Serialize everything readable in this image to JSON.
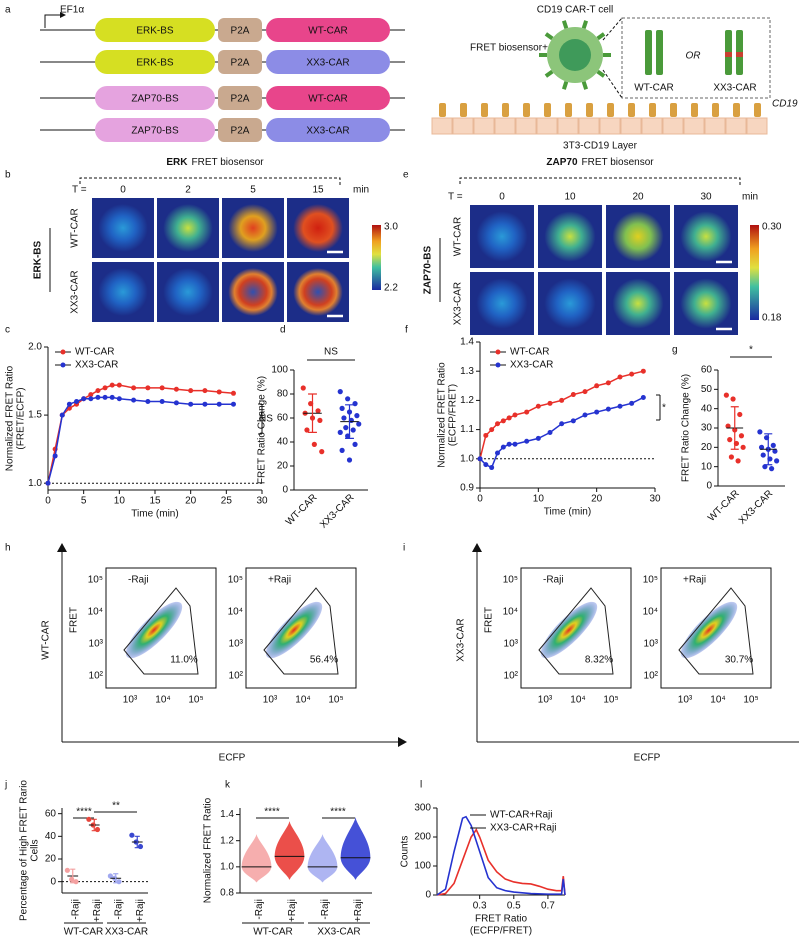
{
  "panel_labels": [
    "a",
    "b",
    "c",
    "d",
    "e",
    "f",
    "g",
    "h",
    "i",
    "j",
    "k",
    "l"
  ],
  "constructs": {
    "promoter": "EF1α",
    "rows": [
      [
        "ERK-BS",
        "P2A",
        "WT-CAR"
      ],
      [
        "ERK-BS",
        "P2A",
        "XX3-CAR"
      ],
      [
        "ZAP70-BS",
        "P2A",
        "WT-CAR"
      ],
      [
        "ZAP70-BS",
        "P2A",
        "XX3-CAR"
      ]
    ]
  },
  "diagram": {
    "cell": "CD19 CAR-T cell",
    "biosensor": "FRET biosensor+",
    "or": "OR",
    "left": "WT-CAR",
    "right": "XX3-CAR",
    "ligand": "CD19",
    "layer": "3T3-CD19 Layer"
  },
  "imaging": [
    {
      "title_bold": "ERK",
      "title": "FRET biosensor",
      "t_label": "T =",
      "times": [
        0,
        2,
        5,
        15
      ],
      "unit": "min",
      "rows": [
        "WT-CAR",
        "XX3-CAR"
      ],
      "group": "ERK-BS",
      "colorbar": [
        "3.0",
        "2.2"
      ]
    },
    {
      "title_bold": "ZAP70",
      "title": "FRET biosensor",
      "t_label": "T =",
      "times": [
        0,
        10,
        20,
        30
      ],
      "unit": "min",
      "rows": [
        "WT-CAR",
        "XX3-CAR"
      ],
      "group": "ZAP70-BS",
      "colorbar": [
        "0.30",
        "0.18"
      ]
    }
  ],
  "flow": [
    {
      "row": "WT-CAR",
      "ylabel": "FRET",
      "xlabel": "ECFP",
      "plots": [
        {
          "title": "-Raji",
          "gate": "11.0%"
        },
        {
          "title": "+Raji",
          "gate": "56.4%"
        }
      ],
      "yticks": [
        "10⁵",
        "10⁴",
        "10³",
        "10²"
      ],
      "xticks": [
        "10³",
        "10⁴",
        "10⁵"
      ]
    },
    {
      "row": "XX3-CAR",
      "ylabel": "FRET",
      "xlabel": "ECFP",
      "plots": [
        {
          "title": "-Raji",
          "gate": "8.32%"
        },
        {
          "title": "+Raji",
          "gate": "30.7%"
        }
      ],
      "yticks": [
        "10⁵",
        "10⁴",
        "10³",
        "10²"
      ],
      "xticks": [
        "10³",
        "10⁴",
        "10⁵"
      ]
    }
  ],
  "chart_data": [
    {
      "type": "line",
      "markers": true,
      "xlabel": "Time (min)",
      "ylabel": [
        "Normalized FRET Ratio",
        "(FRET/ECFP)"
      ],
      "xlim": [
        0,
        30
      ],
      "xticks": [
        0,
        5,
        10,
        15,
        20,
        25,
        30
      ],
      "ylim": [
        0.95,
        2.0
      ],
      "yticks": [
        {
          "value": 1.0,
          "label": "1.0"
        },
        {
          "value": 1.5,
          "label": "1.5"
        },
        {
          "value": 2.0,
          "label": "2.0"
        }
      ],
      "refline": 1.0,
      "annotations": [
        "NS"
      ],
      "series": [
        {
          "name": "WT-CAR",
          "color": "#e8302a",
          "x": [
            0,
            1,
            2,
            3,
            4,
            5,
            6,
            7,
            8,
            9,
            10,
            12,
            14,
            16,
            18,
            20,
            22,
            24,
            26
          ],
          "values": [
            1.0,
            1.25,
            1.5,
            1.55,
            1.58,
            1.62,
            1.65,
            1.68,
            1.7,
            1.72,
            1.72,
            1.7,
            1.7,
            1.7,
            1.69,
            1.68,
            1.68,
            1.67,
            1.66
          ]
        },
        {
          "name": "XX3-CAR",
          "color": "#2533d0",
          "x": [
            0,
            1,
            2,
            3,
            4,
            5,
            6,
            7,
            8,
            9,
            10,
            12,
            14,
            16,
            18,
            20,
            22,
            24,
            26
          ],
          "values": [
            1.0,
            1.2,
            1.5,
            1.58,
            1.6,
            1.62,
            1.62,
            1.63,
            1.63,
            1.63,
            1.62,
            1.61,
            1.6,
            1.6,
            1.59,
            1.58,
            1.58,
            1.58,
            1.58
          ]
        }
      ]
    },
    {
      "type": "dot",
      "ylabel": [
        "FRET Ratio Change (%)"
      ],
      "ylim": [
        0,
        100
      ],
      "yticks": [
        0,
        20,
        40,
        60,
        80,
        100
      ],
      "categories": [
        "WT-CAR",
        "XX3-CAR"
      ],
      "colors": [
        "#e8302a",
        "#2533d0"
      ],
      "annotations": [
        "NS"
      ],
      "points": [
        [
          85,
          72,
          66,
          64,
          60,
          58,
          50,
          38,
          32
        ],
        [
          82,
          76,
          72,
          68,
          65,
          62,
          60,
          58,
          55,
          52,
          50,
          48,
          45,
          38,
          33,
          25
        ]
      ],
      "means": [
        64,
        57
      ],
      "sds": [
        16,
        14
      ]
    },
    {
      "type": "line",
      "markers": true,
      "xlabel": "Time (min)",
      "ylabel": [
        "Normalized FRET Ratio",
        "(ECFP/FRET)"
      ],
      "xlim": [
        0,
        30
      ],
      "xticks": [
        0,
        10,
        20,
        30
      ],
      "ylim": [
        0.9,
        1.4
      ],
      "yticks": [
        {
          "value": 0.9,
          "label": "0.9"
        },
        {
          "value": 1.0,
          "label": "1.0"
        },
        {
          "value": 1.1,
          "label": "1.1"
        },
        {
          "value": 1.2,
          "label": "1.2"
        },
        {
          "value": 1.3,
          "label": "1.3"
        },
        {
          "value": 1.4,
          "label": "1.4"
        }
      ],
      "refline": 1.0,
      "annotations": [
        "*"
      ],
      "series": [
        {
          "name": "WT-CAR",
          "color": "#e8302a",
          "x": [
            0,
            1,
            2,
            3,
            4,
            5,
            6,
            8,
            10,
            12,
            14,
            16,
            18,
            20,
            22,
            24,
            26,
            28
          ],
          "values": [
            1.0,
            1.08,
            1.1,
            1.12,
            1.13,
            1.14,
            1.15,
            1.16,
            1.18,
            1.19,
            1.2,
            1.22,
            1.23,
            1.25,
            1.26,
            1.28,
            1.29,
            1.3
          ]
        },
        {
          "name": "XX3-CAR",
          "color": "#2533d0",
          "x": [
            0,
            1,
            2,
            3,
            4,
            5,
            6,
            8,
            10,
            12,
            14,
            16,
            18,
            20,
            22,
            24,
            26,
            28
          ],
          "values": [
            1.0,
            0.98,
            0.97,
            1.02,
            1.04,
            1.05,
            1.05,
            1.06,
            1.07,
            1.09,
            1.12,
            1.13,
            1.15,
            1.16,
            1.17,
            1.18,
            1.19,
            1.21
          ]
        }
      ]
    },
    {
      "type": "dot",
      "ylabel": [
        "FRET Ratio Change (%)"
      ],
      "ylim": [
        0,
        60
      ],
      "yticks": [
        0,
        10,
        20,
        30,
        40,
        50,
        60
      ],
      "categories": [
        "WT-CAR",
        "XX3-CAR"
      ],
      "colors": [
        "#e8302a",
        "#2533d0"
      ],
      "annotations": [
        "*"
      ],
      "points": [
        [
          47,
          45,
          37,
          31,
          29,
          26,
          24,
          22,
          20,
          15,
          13
        ],
        [
          28,
          25,
          21,
          20,
          19,
          18,
          16,
          14,
          13,
          10,
          9
        ]
      ],
      "means": [
        30,
        19
      ],
      "sds": [
        11,
        8
      ]
    },
    {
      "type": "dot",
      "ylabel": [
        "Percentage of High FRET Rario",
        "Cells"
      ],
      "ylim": [
        -10,
        65
      ],
      "yticks": [
        0,
        20,
        40,
        60
      ],
      "categories": [
        "-Raji",
        "+Raji",
        "-Raji",
        "+Raji"
      ],
      "groups": [
        "WT-CAR",
        "XX3-CAR"
      ],
      "colors": [
        "#f4a0a0",
        "#e8453c",
        "#a0a8f0",
        "#3a48d0"
      ],
      "refline": 0,
      "annotations": [
        "****",
        "**"
      ],
      "points": [
        [
          10,
          2,
          0
        ],
        [
          55,
          50,
          46
        ],
        [
          5,
          3,
          0
        ],
        [
          41,
          35,
          31
        ]
      ],
      "means": [
        5,
        50,
        3,
        35
      ],
      "sds": [
        6,
        5,
        4,
        5
      ]
    },
    {
      "type": "violin",
      "ylabel": [
        "Normalized FRET Ratio"
      ],
      "ylim": [
        0.8,
        1.45
      ],
      "yticks": [
        {
          "value": 0.8,
          "label": "0.8"
        },
        {
          "value": 1.0,
          "label": "1.0"
        },
        {
          "value": 1.2,
          "label": "1.2"
        },
        {
          "value": 1.4,
          "label": "1.4"
        }
      ],
      "categories": [
        "-Raji",
        "+Raji",
        "-Raji",
        "+Raji"
      ],
      "groups": [
        "WT-CAR",
        "XX3-CAR"
      ],
      "colors": [
        "#f4a0a0",
        "#e8302a",
        "#a0a8f0",
        "#2533d0"
      ],
      "annotations": [
        "****",
        "****"
      ],
      "medians": [
        1.0,
        1.08,
        1.0,
        1.07
      ],
      "ranges": [
        [
          0.88,
          1.25
        ],
        [
          0.9,
          1.35
        ],
        [
          0.88,
          1.25
        ],
        [
          0.9,
          1.38
        ]
      ]
    },
    {
      "type": "line",
      "markers": false,
      "xlabel": [
        "FRET Ratio",
        "(ECFP/FRET)"
      ],
      "ylabel": [
        "Counts"
      ],
      "xlim": [
        0.05,
        0.8
      ],
      "xticks": [
        0.3,
        0.5,
        0.7
      ],
      "ylim": [
        0,
        300
      ],
      "yticks": [
        0,
        100,
        200,
        300
      ],
      "series": [
        {
          "name": "WT-CAR+Raji",
          "color": "#e8302a",
          "x": [
            0.05,
            0.1,
            0.15,
            0.2,
            0.25,
            0.28,
            0.3,
            0.35,
            0.4,
            0.45,
            0.5,
            0.55,
            0.6,
            0.65,
            0.7,
            0.75,
            0.78,
            0.79,
            0.8
          ],
          "values": [
            0,
            5,
            40,
            120,
            200,
            225,
            200,
            120,
            80,
            55,
            45,
            40,
            38,
            30,
            20,
            15,
            15,
            65,
            0
          ]
        },
        {
          "name": "XX3-CAR+Raji",
          "color": "#2533d0",
          "x": [
            0.05,
            0.1,
            0.15,
            0.2,
            0.22,
            0.25,
            0.3,
            0.35,
            0.4,
            0.45,
            0.5,
            0.6,
            0.7,
            0.78,
            0.79,
            0.8
          ],
          "values": [
            0,
            20,
            150,
            265,
            270,
            240,
            150,
            60,
            25,
            15,
            10,
            5,
            3,
            3,
            55,
            0
          ]
        }
      ]
    }
  ]
}
